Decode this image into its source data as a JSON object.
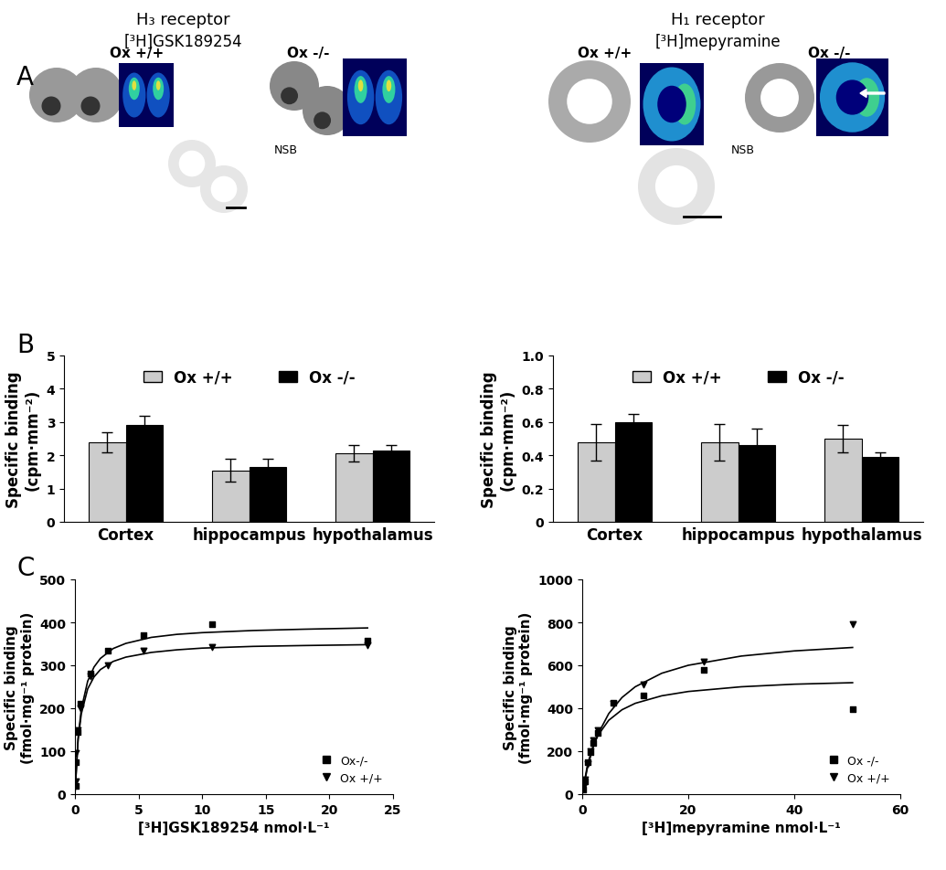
{
  "headers": [
    {
      "title": "H₃ receptor",
      "subtitle": "[³H]GSK189254"
    },
    {
      "title": "H₁ receptor",
      "subtitle": "[³H]mepyramine"
    }
  ],
  "panel_labels": [
    "A",
    "B",
    "C"
  ],
  "panel_A": [
    {
      "images": [
        "Ox +/+",
        "Ox -/-"
      ],
      "nsb": "NSB"
    },
    {
      "images": [
        "Ox +/+",
        "Ox -/-"
      ],
      "nsb": "NSB"
    }
  ],
  "chart_data": [
    {
      "type": "bar",
      "ylabel": "Specific binding\n(cpm·mm⁻²)",
      "categories": [
        "Cortex",
        "hippocampus",
        "hypothalamus"
      ],
      "series": [
        {
          "name": "Ox +/+",
          "color": "#cccccc",
          "values": [
            2.4,
            1.55,
            2.05
          ],
          "errors": [
            0.3,
            0.35,
            0.25
          ]
        },
        {
          "name": "Ox -/-",
          "color": "#000000",
          "values": [
            2.9,
            1.65,
            2.15
          ],
          "errors": [
            0.3,
            0.25,
            0.15
          ]
        }
      ],
      "ylim": [
        0,
        5
      ],
      "yticks": [
        0,
        1,
        2,
        3,
        4,
        5
      ],
      "legend": "upper center"
    },
    {
      "type": "bar",
      "ylabel": "Specific binding\n(cpm·mm⁻²)",
      "categories": [
        "Cortex",
        "hippocampus",
        "hypothalamus"
      ],
      "series": [
        {
          "name": "Ox +/+",
          "color": "#cccccc",
          "values": [
            0.48,
            0.48,
            0.5
          ],
          "errors": [
            0.11,
            0.11,
            0.08
          ]
        },
        {
          "name": "Ox -/-",
          "color": "#000000",
          "values": [
            0.6,
            0.46,
            0.39
          ],
          "errors": [
            0.05,
            0.1,
            0.03
          ]
        }
      ],
      "ylim": [
        0,
        1.0
      ],
      "yticks": [
        0,
        0.2,
        0.4,
        0.6,
        0.8,
        1.0
      ],
      "legend": "upper center"
    },
    {
      "type": "scatter",
      "xlabel": "[³H]GSK189254 nmol·L⁻¹",
      "ylabel": "Specific binding\n(fmol·mg⁻¹ protein)",
      "xlim": [
        0,
        25
      ],
      "xticks": [
        0,
        5,
        10,
        15,
        20,
        25
      ],
      "ylim": [
        0,
        500
      ],
      "yticks": [
        0,
        100,
        200,
        300,
        400,
        500
      ],
      "legend": "lower right",
      "series": [
        {
          "name": "Ox-/-",
          "marker": "square",
          "color": "#000000",
          "x": [
            0.05,
            0.1,
            0.2,
            0.4,
            1.2,
            2.6,
            5.4,
            10.8,
            23
          ],
          "values": [
            20,
            75,
            145,
            210,
            280,
            335,
            370,
            395,
            358
          ],
          "fit": {
            "x": [
              0,
              0.25,
              0.5,
              1,
              1.5,
              2,
              3,
              4,
              6,
              8,
              10,
              14,
              18,
              23
            ],
            "values": [
              0,
              132,
              198,
              263,
              296,
              316,
              339,
              351,
              365,
              372,
              376,
              381,
              384,
              387
            ]
          }
        },
        {
          "name": "Ox +/+",
          "marker": "triangle_down",
          "color": "#000000",
          "x": [
            0.05,
            0.1,
            0.2,
            0.4,
            1.2,
            2.6,
            5.4,
            10.8,
            23
          ],
          "values": [
            30,
            95,
            150,
            200,
            275,
            300,
            333,
            343,
            347
          ],
          "fit": {
            "x": [
              0,
              0.25,
              0.5,
              1,
              1.5,
              2,
              3,
              4,
              6,
              8,
              10,
              14,
              18,
              23
            ],
            "values": [
              0,
              127,
              187,
              245,
              273,
              290,
              309,
              319,
              330,
              336,
              340,
              344,
              346,
              348
            ]
          }
        }
      ]
    },
    {
      "type": "scatter",
      "xlabel": "[³H]mepyramine nmol·L⁻¹",
      "ylabel": "Specific binding\n(fmol·mg⁻¹ protein)",
      "xlim": [
        0,
        60
      ],
      "xticks": [
        0,
        20,
        40,
        60
      ],
      "ylim": [
        0,
        1000
      ],
      "yticks": [
        0,
        200,
        400,
        600,
        800,
        1000
      ],
      "legend": "lower right",
      "series": [
        {
          "name": "Ox -/-",
          "marker": "square",
          "color": "#000000",
          "x": [
            0.2,
            0.5,
            1,
            1.5,
            2,
            3,
            5.8,
            11.5,
            23,
            51
          ],
          "values": [
            20,
            60,
            150,
            195,
            240,
            285,
            425,
            460,
            580,
            395
          ],
          "fit": {
            "x": [
              0,
              1,
              2,
              3,
              5,
              7.5,
              10,
              15,
              20,
              30,
              40,
              51
            ],
            "values": [
              0,
              138,
              220,
              275,
              344,
              393,
              423,
              458,
              478,
              500,
              512,
              519
            ]
          }
        },
        {
          "name": "Ox +/+",
          "marker": "triangle_down",
          "color": "#000000",
          "x": [
            0.2,
            0.5,
            1,
            1.5,
            2,
            3,
            5.8,
            11.5,
            23,
            51
          ],
          "values": [
            30,
            70,
            140,
            200,
            250,
            300,
            420,
            510,
            615,
            790
          ],
          "fit": {
            "x": [
              0,
              1,
              2,
              3,
              5,
              7.5,
              10,
              15,
              20,
              30,
              40,
              51
            ],
            "values": [
              0,
              125,
              214,
              281,
              375,
              450,
              500,
              563,
              600,
              643,
              667,
              683
            ]
          }
        }
      ]
    }
  ]
}
